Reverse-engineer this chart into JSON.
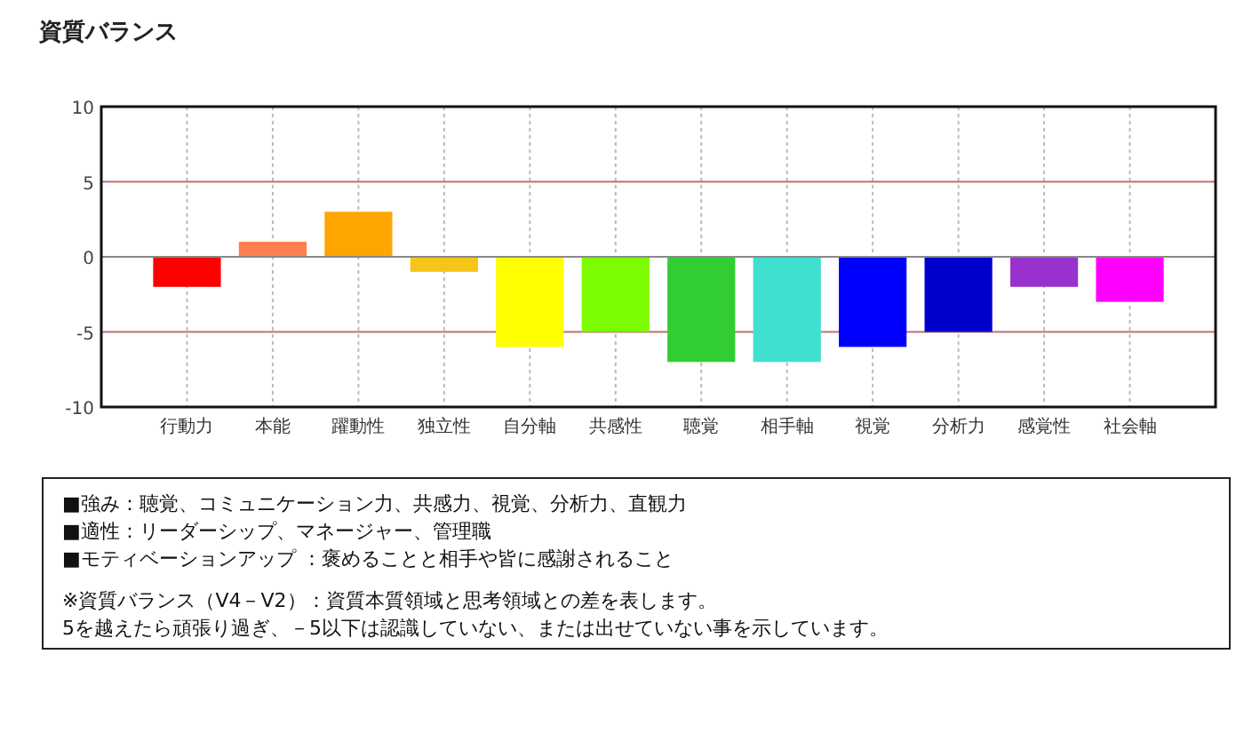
{
  "chart_data": {
    "type": "bar",
    "title": "資質バランス",
    "categories": [
      "行動力",
      "本能",
      "躍動性",
      "独立性",
      "自分軸",
      "共感性",
      "聴覚",
      "相手軸",
      "視覚",
      "分析力",
      "感覚性",
      "社会軸"
    ],
    "values": [
      -2,
      1,
      3,
      -1,
      -6,
      -5,
      -7,
      -7,
      -6,
      -5,
      -2,
      -3
    ],
    "colors": [
      "#ff0000",
      "#ff7f50",
      "#ffa500",
      "#f5c518",
      "#ffff00",
      "#7cfc00",
      "#32cd32",
      "#40e0d0",
      "#0000ff",
      "#0000cd",
      "#9932cc",
      "#ff00ff"
    ],
    "ylim": [
      -10,
      10
    ],
    "yticks": [
      -10,
      -5,
      0,
      5,
      10
    ],
    "grid": "x",
    "ref_lines": [
      {
        "axis": "y",
        "value": 5,
        "color": "#c07070"
      },
      {
        "axis": "y",
        "value": -5,
        "color": "#c07070"
      }
    ],
    "annotations": [
      "■強み：聴覚、コミュニケーション力、共感力、視覚、分析力、直観力",
      "■適性：リーダーシップ、マネージャー、管理職",
      "■モティベーションアップ ：褒めることと相手や皆に感謝されること",
      "※資質バランス（V4－V2）：資質本質領域と思考領域との差を表します。",
      "5を越えたら頑張り過ぎ、－5以下は認識していない、または出せていない事を示しています。"
    ]
  }
}
